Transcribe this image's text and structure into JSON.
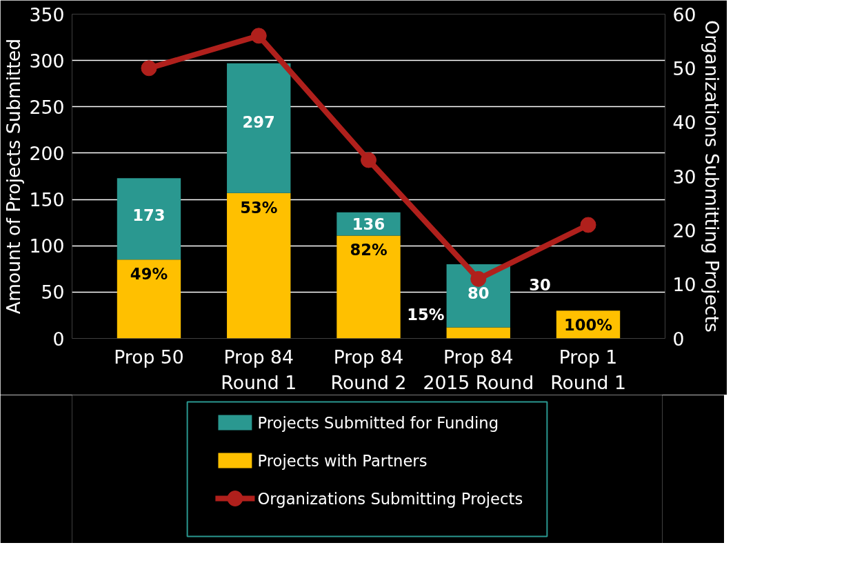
{
  "chart_data": {
    "type": "bar",
    "stacked": true,
    "categories": [
      "Prop 50",
      "Prop 84\nRound 1",
      "Prop 84\nRound 2",
      "Prop 84\n2015 Round",
      "Prop 1\nRound 1"
    ],
    "ylabel": "Amount of Projects Submitted",
    "y2label": "Organizations Submitting Projects",
    "ylim": [
      0,
      350
    ],
    "yticks": [
      0,
      50,
      100,
      150,
      200,
      250,
      300,
      350
    ],
    "y2lim": [
      0,
      60
    ],
    "y2ticks": [
      0,
      10,
      20,
      30,
      40,
      50,
      60
    ],
    "grid": "y",
    "legend": "bottom",
    "totals": [
      "173",
      "297",
      "136",
      "80",
      "30"
    ],
    "annotations": [
      {
        "text": "49%",
        "x": "Prop 50",
        "y": 85
      },
      {
        "text": "53%",
        "x": "Prop 84\nRound 1",
        "y": 157
      },
      {
        "text": "82%",
        "x": "Prop 84\nRound 2",
        "y": 111
      },
      {
        "text": "15%",
        "x": "Prop 84\n2015 Round",
        "y": 12
      },
      {
        "text": "100%",
        "x": "Prop 1\nRound 1",
        "y": 30
      }
    ],
    "series": [
      {
        "name": "Projects with Partners",
        "color": "#ffc000",
        "values": [
          85,
          157,
          111,
          12,
          30
        ]
      },
      {
        "name": "Projects Submitted for Funding",
        "color": "#2a9890",
        "values": [
          88,
          140,
          25,
          68,
          0
        ]
      },
      {
        "name": "Organizations Submitting Projects",
        "type": "line",
        "axis": "y2",
        "color": "#b0201c",
        "marker": "circle",
        "values": [
          50,
          56,
          33,
          11,
          21
        ]
      }
    ]
  }
}
